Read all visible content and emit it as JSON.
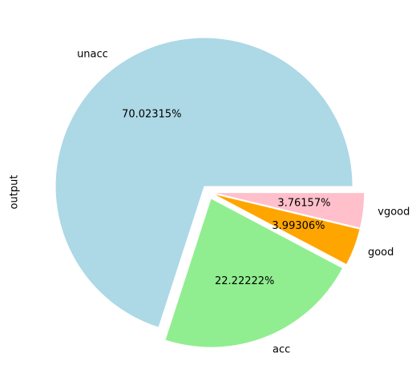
{
  "chart_data": {
    "type": "pie",
    "ylabel": "output",
    "categories": [
      "unacc",
      "acc",
      "good",
      "vgood"
    ],
    "values": [
      70.02315,
      22.22222,
      3.99306,
      3.76157
    ],
    "value_labels": [
      "70.02315%",
      "22.22222%",
      "3.99306%",
      "3.76157%"
    ],
    "colors": [
      "#add8e6",
      "#90ee90",
      "#ffa500",
      "#ffc0cb"
    ],
    "explode": [
      0.05,
      0.05,
      0.05,
      0.05
    ]
  }
}
